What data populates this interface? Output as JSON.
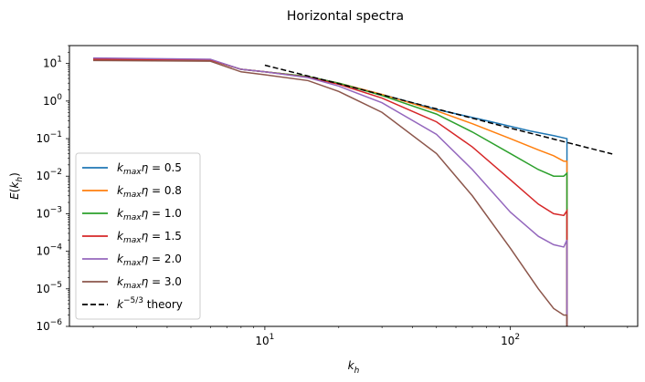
{
  "chart_data": {
    "type": "line",
    "title": "Horizontal spectra",
    "xlabel": "k_h",
    "ylabel": "E(k_h)",
    "xscale": "log",
    "yscale": "log",
    "xlim": [
      1.6,
      330
    ],
    "ylim": [
      1e-06,
      30
    ],
    "x_ticks": [
      {
        "value": 10,
        "base": "10",
        "exp": "1"
      },
      {
        "value": 100,
        "base": "10",
        "exp": "2"
      }
    ],
    "y_ticks": [
      {
        "value": 1e-06,
        "base": "10",
        "exp": "−6"
      },
      {
        "value": 1e-05,
        "base": "10",
        "exp": "−5"
      },
      {
        "value": 0.0001,
        "base": "10",
        "exp": "−4"
      },
      {
        "value": 0.001,
        "base": "10",
        "exp": "−3"
      },
      {
        "value": 0.01,
        "base": "10",
        "exp": "−2"
      },
      {
        "value": 0.1,
        "base": "10",
        "exp": "−1"
      },
      {
        "value": 1,
        "base": "10",
        "exp": "0"
      },
      {
        "value": 10,
        "base": "10",
        "exp": "1"
      }
    ],
    "grid": false,
    "legend_position": "lower-left",
    "series": [
      {
        "name": "k_max η = 0.5",
        "legend_value": "0.5",
        "color": "#1f77b4",
        "dashed": false,
        "points": [
          [
            2,
            13
          ],
          [
            6,
            12.5
          ],
          [
            8,
            7
          ],
          [
            10,
            6
          ],
          [
            15,
            4.5
          ],
          [
            20,
            3
          ],
          [
            30,
            1.5
          ],
          [
            50,
            0.6
          ],
          [
            80,
            0.3
          ],
          [
            120,
            0.16
          ],
          [
            150,
            0.12
          ],
          [
            170,
            0.1
          ],
          [
            170,
            1e-07
          ]
        ]
      },
      {
        "name": "k_max η = 0.8",
        "legend_value": "0.8",
        "color": "#ff7f0e",
        "dashed": false,
        "points": [
          [
            2,
            13
          ],
          [
            6,
            12.5
          ],
          [
            8,
            7
          ],
          [
            10,
            6
          ],
          [
            15,
            4.5
          ],
          [
            20,
            3
          ],
          [
            30,
            1.5
          ],
          [
            50,
            0.55
          ],
          [
            70,
            0.25
          ],
          [
            100,
            0.1
          ],
          [
            130,
            0.05
          ],
          [
            150,
            0.035
          ],
          [
            165,
            0.025
          ],
          [
            170,
            0.025
          ],
          [
            170,
            1e-07
          ]
        ]
      },
      {
        "name": "k_max η = 1.0",
        "legend_value": "1.0",
        "color": "#2ca02c",
        "dashed": false,
        "points": [
          [
            2,
            13
          ],
          [
            6,
            12.5
          ],
          [
            8,
            7
          ],
          [
            10,
            6
          ],
          [
            15,
            4.5
          ],
          [
            20,
            3
          ],
          [
            30,
            1.4
          ],
          [
            50,
            0.45
          ],
          [
            70,
            0.15
          ],
          [
            100,
            0.04
          ],
          [
            130,
            0.015
          ],
          [
            150,
            0.01
          ],
          [
            165,
            0.01
          ],
          [
            170,
            0.012
          ],
          [
            170,
            1e-07
          ]
        ]
      },
      {
        "name": "k_max η = 1.5",
        "legend_value": "1.5",
        "color": "#d62728",
        "dashed": false,
        "points": [
          [
            2,
            13
          ],
          [
            6,
            12.5
          ],
          [
            8,
            7
          ],
          [
            10,
            6
          ],
          [
            15,
            4.3
          ],
          [
            20,
            2.8
          ],
          [
            30,
            1.2
          ],
          [
            50,
            0.28
          ],
          [
            70,
            0.06
          ],
          [
            100,
            0.008
          ],
          [
            130,
            0.0018
          ],
          [
            150,
            0.001
          ],
          [
            165,
            0.0009
          ],
          [
            170,
            0.0012
          ],
          [
            170,
            1e-07
          ]
        ]
      },
      {
        "name": "k_max η = 2.0",
        "legend_value": "2.0",
        "color": "#9467bd",
        "dashed": false,
        "points": [
          [
            2,
            14
          ],
          [
            6,
            13
          ],
          [
            8,
            7
          ],
          [
            10,
            6
          ],
          [
            15,
            4.2
          ],
          [
            20,
            2.5
          ],
          [
            30,
            0.9
          ],
          [
            50,
            0.13
          ],
          [
            70,
            0.015
          ],
          [
            100,
            0.0011
          ],
          [
            130,
            0.00025
          ],
          [
            150,
            0.00015
          ],
          [
            165,
            0.00013
          ],
          [
            170,
            0.0002
          ],
          [
            170,
            1e-07
          ]
        ]
      },
      {
        "name": "k_max η = 3.0",
        "legend_value": "3.0",
        "color": "#8c564b",
        "dashed": false,
        "points": [
          [
            2,
            12
          ],
          [
            6,
            11.5
          ],
          [
            8,
            6
          ],
          [
            10,
            5
          ],
          [
            15,
            3.5
          ],
          [
            20,
            1.8
          ],
          [
            30,
            0.5
          ],
          [
            50,
            0.04
          ],
          [
            70,
            0.003
          ],
          [
            100,
            0.00012
          ],
          [
            130,
            1e-05
          ],
          [
            150,
            3e-06
          ],
          [
            165,
            2e-06
          ],
          [
            170,
            2e-06
          ],
          [
            170,
            1e-07
          ]
        ]
      },
      {
        "name": "k^−5/3 theory",
        "legend_text": " theory",
        "color": "#000000",
        "dashed": true,
        "points": [
          [
            10,
            9
          ],
          [
            20,
            2.9
          ],
          [
            50,
            0.62
          ],
          [
            100,
            0.19
          ],
          [
            170,
            0.079
          ],
          [
            260,
            0.039
          ]
        ]
      }
    ]
  }
}
